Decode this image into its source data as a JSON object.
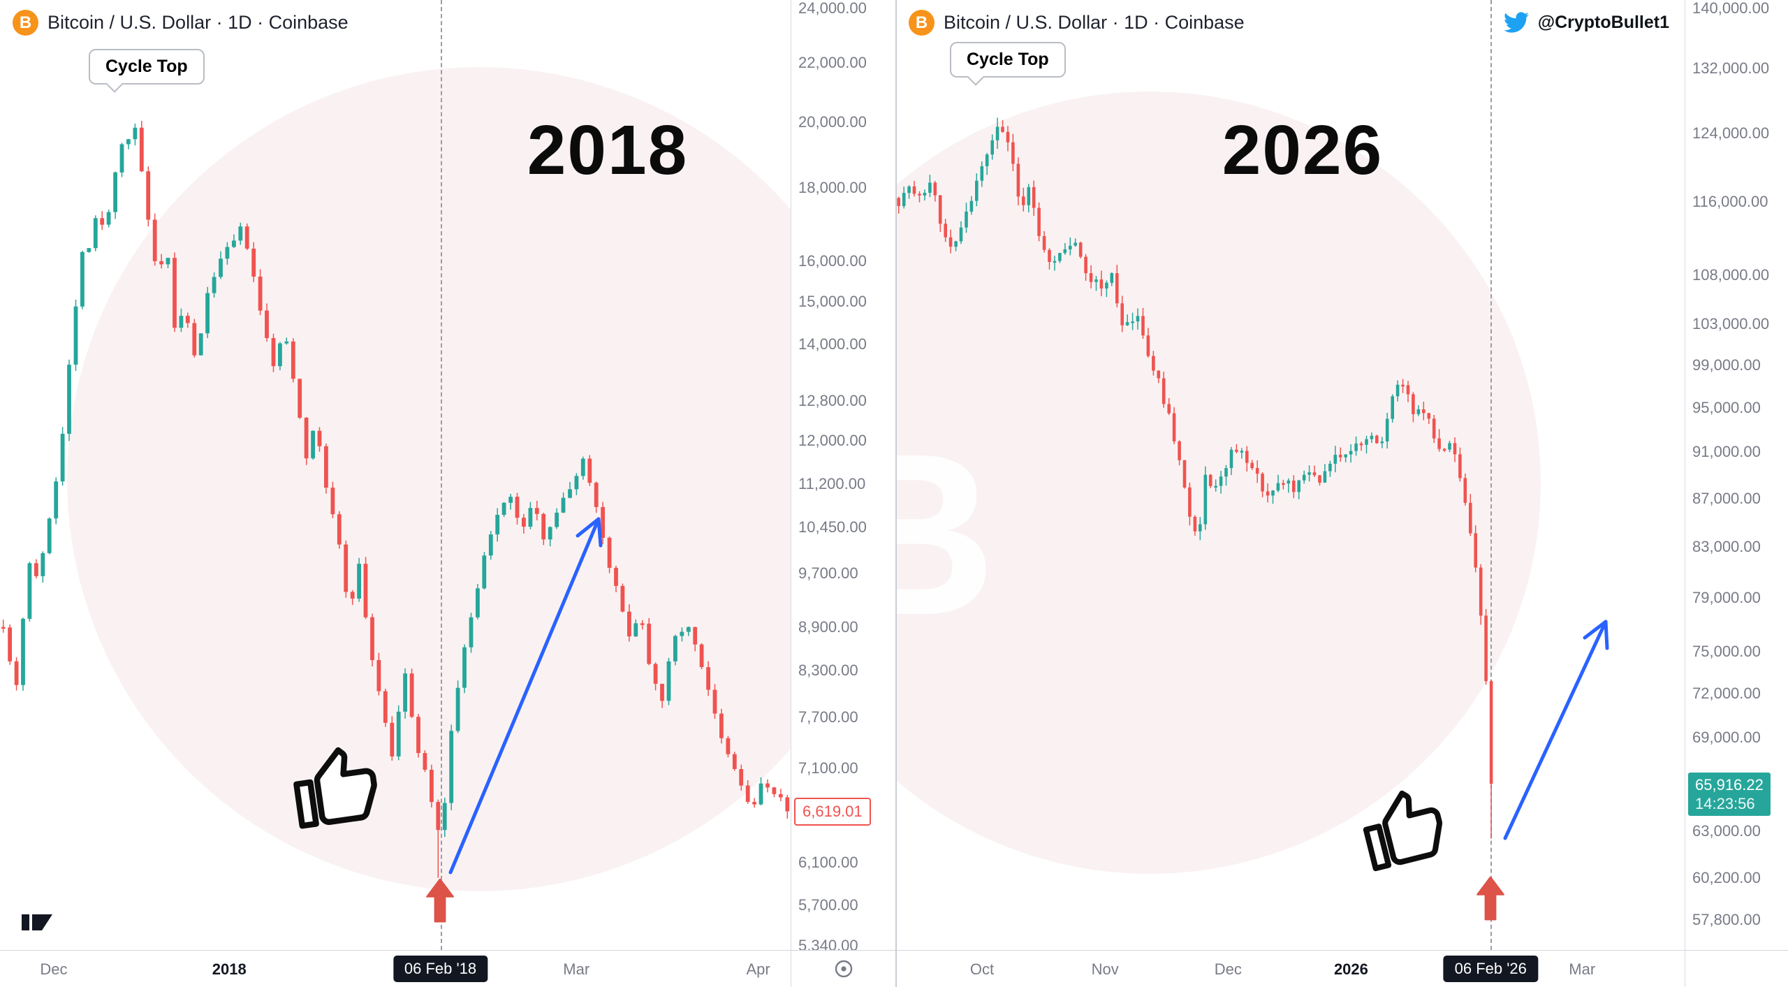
{
  "colors": {
    "candle_up": "#26a69a",
    "candle_down": "#ef5350",
    "accent_blue": "#2962ff",
    "arrow_red": "#dd5348",
    "tag_teal": "#26a69a",
    "tag_red": "#ef5350",
    "axis_text": "#787b86",
    "header_text": "#1e222d",
    "twitter_blue": "#1da1f2",
    "btc_orange": "#f7931a",
    "chip_bg": "#131722"
  },
  "icons": {
    "btc-coin-icon": "orange circle with white B",
    "twitter-bird-icon": "blue twitter bird",
    "thumbs-up-icon": "black outline thumbs up hand",
    "crash-arrow-icon": "red upward arrow",
    "recovery-arrow-icon": "blue diagonal arrow up-right",
    "tradingview-logo-icon": "black TradingView mark",
    "interval-eye-icon": "gray circle with dot"
  },
  "panels": [
    {
      "header": "Bitcoin / U.S. Dollar · 1D · Coinbase",
      "coin_letter": "B",
      "year_label": "2018",
      "cycle_top_label": "Cycle Top"
    },
    {
      "header": "Bitcoin / U.S. Dollar · 1D · Coinbase",
      "coin_letter": "B",
      "year_label": "2026",
      "cycle_top_label": "Cycle Top",
      "twitter_handle": "@CryptoBullet1",
      "watermark_letter": "B"
    }
  ],
  "chart_data": [
    {
      "type": "candlestick",
      "title": "Bitcoin / U.S. Dollar 1D Coinbase - 2018 cycle",
      "scale": "log",
      "grid": false,
      "ylim": [
        5300,
        24300
      ],
      "y_ticks": [
        24000,
        22000,
        20000,
        18000,
        16000,
        15000,
        14000,
        12800,
        12000,
        11200,
        10450,
        9700,
        8900,
        8300,
        7700,
        7100,
        6100,
        5700,
        5340
      ],
      "x_ticks": [
        {
          "label": "Dec",
          "f": 0.068
        },
        {
          "label": "2018",
          "f": 0.29,
          "major": true
        },
        {
          "label": "06 Feb '18",
          "f": 0.557,
          "marked": true
        },
        {
          "label": "Mar",
          "f": 0.729
        },
        {
          "label": "Apr",
          "f": 0.959
        }
      ],
      "marked_date_fraction": 0.557,
      "marked_date_label": "06 Feb '18",
      "cycle_top_price": 19800,
      "crash_low_price": 5950,
      "rebound_high_price": 11650,
      "last_price": 6619.01,
      "countdown": null,
      "candle_count": 120,
      "data_end_fraction": 1.0,
      "seed": 7,
      "noise": 0.008,
      "wick": 0.012,
      "force_last_close": 6619.01,
      "spike_low": {
        "f": 0.557,
        "low": 5950
      },
      "waypoints": [
        [
          0.0,
          9300
        ],
        [
          0.01,
          8500
        ],
        [
          0.022,
          8100
        ],
        [
          0.035,
          9900
        ],
        [
          0.05,
          9600
        ],
        [
          0.062,
          10600
        ],
        [
          0.075,
          11600
        ],
        [
          0.088,
          13600
        ],
        [
          0.098,
          15200
        ],
        [
          0.107,
          16900
        ],
        [
          0.115,
          16100
        ],
        [
          0.124,
          17600
        ],
        [
          0.133,
          16500
        ],
        [
          0.143,
          18200
        ],
        [
          0.152,
          19300
        ],
        [
          0.163,
          19500
        ],
        [
          0.17,
          19800
        ],
        [
          0.18,
          18300
        ],
        [
          0.188,
          17000
        ],
        [
          0.2,
          15300
        ],
        [
          0.21,
          16500
        ],
        [
          0.222,
          14200
        ],
        [
          0.233,
          14800
        ],
        [
          0.247,
          13600
        ],
        [
          0.26,
          14900
        ],
        [
          0.272,
          15800
        ],
        [
          0.29,
          16300
        ],
        [
          0.308,
          16900
        ],
        [
          0.322,
          15400
        ],
        [
          0.334,
          14300
        ],
        [
          0.347,
          13500
        ],
        [
          0.36,
          14300
        ],
        [
          0.373,
          13100
        ],
        [
          0.388,
          11700
        ],
        [
          0.4,
          12300
        ],
        [
          0.413,
          11100
        ],
        [
          0.428,
          10200
        ],
        [
          0.442,
          9100
        ],
        [
          0.453,
          9900
        ],
        [
          0.468,
          8600
        ],
        [
          0.482,
          7900
        ],
        [
          0.497,
          7200
        ],
        [
          0.512,
          8300
        ],
        [
          0.527,
          7300
        ],
        [
          0.543,
          6900
        ],
        [
          0.557,
          6250
        ],
        [
          0.568,
          7300
        ],
        [
          0.583,
          8400
        ],
        [
          0.598,
          9100
        ],
        [
          0.612,
          9900
        ],
        [
          0.628,
          10600
        ],
        [
          0.643,
          11100
        ],
        [
          0.658,
          10350
        ],
        [
          0.673,
          10800
        ],
        [
          0.688,
          10300
        ],
        [
          0.703,
          10700
        ],
        [
          0.718,
          11000
        ],
        [
          0.733,
          11550
        ],
        [
          0.74,
          11650
        ],
        [
          0.752,
          10900
        ],
        [
          0.766,
          10100
        ],
        [
          0.78,
          9400
        ],
        [
          0.795,
          8800
        ],
        [
          0.81,
          9100
        ],
        [
          0.823,
          8300
        ],
        [
          0.838,
          7950
        ],
        [
          0.852,
          8700
        ],
        [
          0.866,
          8950
        ],
        [
          0.88,
          8650
        ],
        [
          0.895,
          8100
        ],
        [
          0.91,
          7450
        ],
        [
          0.925,
          7150
        ],
        [
          0.94,
          6850
        ],
        [
          0.952,
          6600
        ],
        [
          0.963,
          6950
        ],
        [
          0.978,
          6800
        ],
        [
          1.0,
          6619
        ]
      ]
    },
    {
      "type": "candlestick",
      "title": "Bitcoin / U.S. Dollar 1D Coinbase - 2026 cycle",
      "scale": "log",
      "grid": false,
      "ylim": [
        56100,
        141000
      ],
      "y_ticks": [
        140000,
        132000,
        124000,
        116000,
        108000,
        103000,
        99000,
        95000,
        91000,
        87000,
        83000,
        79000,
        75000,
        72000,
        69000,
        63000,
        60200,
        57800
      ],
      "x_ticks": [
        {
          "label": "Oct",
          "f": 0.109
        },
        {
          "label": "Nov",
          "f": 0.265
        },
        {
          "label": "Dec",
          "f": 0.421
        },
        {
          "label": "2026",
          "f": 0.577,
          "major": true
        },
        {
          "label": "06 Feb '26",
          "f": 0.754,
          "marked": true
        },
        {
          "label": "Mar",
          "f": 0.87
        }
      ],
      "marked_date_fraction": 0.754,
      "marked_date_label": "06 Feb '26",
      "cycle_top_price": 125500,
      "crash_low_price": 62500,
      "last_price": 65916.22,
      "countdown": "14:23:56",
      "candle_count": 115,
      "data_end_fraction": 0.758,
      "seed": 9,
      "noise": 0.006,
      "wick": 0.009,
      "force_last_close": 65916.22,
      "spike_low": {
        "f": 0.7547,
        "low": 62500
      },
      "waypoints": [
        [
          0.0,
          115500
        ],
        [
          0.015,
          117200
        ],
        [
          0.03,
          116000
        ],
        [
          0.045,
          117800
        ],
        [
          0.058,
          113000
        ],
        [
          0.072,
          111200
        ],
        [
          0.088,
          114500
        ],
        [
          0.103,
          118500
        ],
        [
          0.118,
          122000
        ],
        [
          0.133,
          125500
        ],
        [
          0.145,
          121500
        ],
        [
          0.158,
          115500
        ],
        [
          0.17,
          117500
        ],
        [
          0.183,
          112000
        ],
        [
          0.197,
          108800
        ],
        [
          0.212,
          110300
        ],
        [
          0.227,
          112200
        ],
        [
          0.242,
          108200
        ],
        [
          0.26,
          106500
        ],
        [
          0.273,
          107800
        ],
        [
          0.288,
          102500
        ],
        [
          0.303,
          104200
        ],
        [
          0.318,
          100200
        ],
        [
          0.333,
          97200
        ],
        [
          0.348,
          93800
        ],
        [
          0.363,
          88500
        ],
        [
          0.375,
          85000
        ],
        [
          0.383,
          83500
        ],
        [
          0.392,
          89000
        ],
        [
          0.405,
          87800
        ],
        [
          0.42,
          90200
        ],
        [
          0.433,
          91600
        ],
        [
          0.448,
          89600
        ],
        [
          0.462,
          88200
        ],
        [
          0.477,
          87200
        ],
        [
          0.491,
          88700
        ],
        [
          0.505,
          87600
        ],
        [
          0.52,
          89200
        ],
        [
          0.535,
          88200
        ],
        [
          0.549,
          89600
        ],
        [
          0.563,
          90600
        ],
        [
          0.577,
          91300
        ],
        [
          0.592,
          91900
        ],
        [
          0.603,
          92800
        ],
        [
          0.615,
          91200
        ],
        [
          0.627,
          95300
        ],
        [
          0.637,
          97600
        ],
        [
          0.648,
          95800
        ],
        [
          0.66,
          94200
        ],
        [
          0.67,
          95000
        ],
        [
          0.681,
          92800
        ],
        [
          0.691,
          90800
        ],
        [
          0.701,
          91800
        ],
        [
          0.711,
          89800
        ],
        [
          0.72,
          87300
        ],
        [
          0.729,
          84300
        ],
        [
          0.737,
          80300
        ],
        [
          0.744,
          76300
        ],
        [
          0.75,
          71500
        ],
        [
          0.754,
          66800
        ],
        [
          0.758,
          65916
        ]
      ]
    }
  ]
}
